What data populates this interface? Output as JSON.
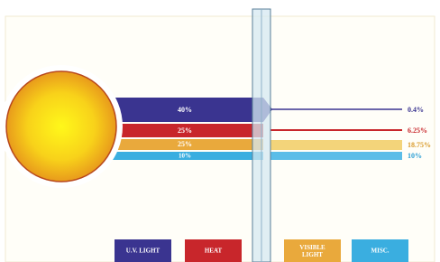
{
  "bands": [
    {
      "legend": "U.V. LIGHT",
      "incoming": "40%",
      "outgoing": "0.4%"
    },
    {
      "legend": "HEAT",
      "incoming": "25%",
      "outgoing": "6.25%"
    },
    {
      "legend": "VISIBLE LIGHT",
      "incoming": "25%",
      "outgoing": "18.75%"
    },
    {
      "legend": "MISC.",
      "incoming": "10%",
      "outgoing": "10%"
    }
  ]
}
